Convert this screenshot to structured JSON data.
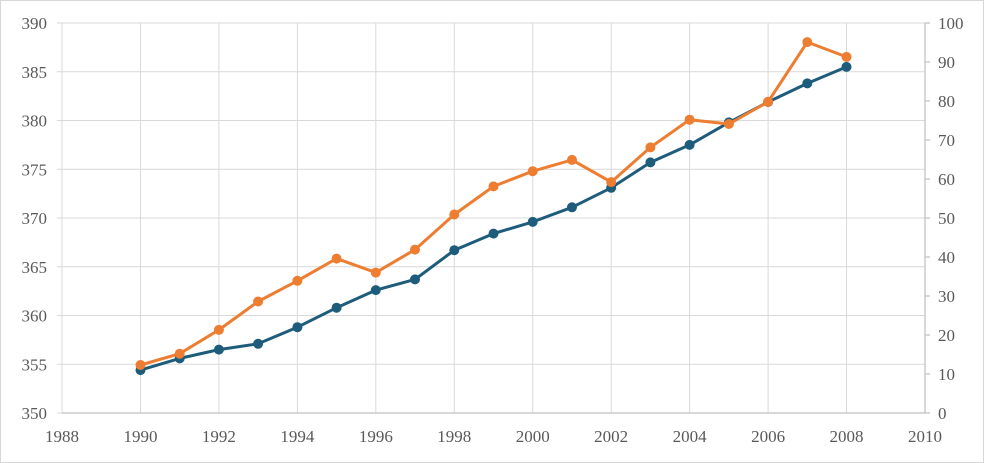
{
  "chart_data": {
    "type": "line",
    "title": "",
    "xlabel": "",
    "ylabel": "",
    "legend": false,
    "grid": true,
    "x": [
      1990,
      1991,
      1992,
      1993,
      1994,
      1995,
      1996,
      1997,
      1998,
      1999,
      2000,
      2001,
      2002,
      2003,
      2004,
      2005,
      2006,
      2007,
      2008
    ],
    "series": [
      {
        "name": "blue-series",
        "axis": "left",
        "color": "#1e5c7c",
        "marker": "circle",
        "values": [
          354.4,
          355.6,
          356.5,
          357.1,
          358.8,
          360.8,
          362.6,
          363.7,
          366.7,
          368.4,
          369.6,
          371.1,
          373.1,
          375.7,
          377.5,
          379.8,
          381.9,
          383.8,
          385.5
        ]
      },
      {
        "name": "orange-series",
        "axis": "right",
        "color": "#ed7d31",
        "marker": "circle",
        "values": [
          12.3,
          15.2,
          21.3,
          28.6,
          33.9,
          39.6,
          36.0,
          41.9,
          50.9,
          58.1,
          62.0,
          64.9,
          59.2,
          68.1,
          75.2,
          74.1,
          79.8,
          95.1,
          91.3
        ]
      }
    ],
    "xlim": [
      1988,
      2010
    ],
    "left_ylim": [
      350,
      390
    ],
    "right_ylim": [
      0,
      100
    ],
    "x_tick_labels": [
      "1988",
      "1990",
      "1992",
      "1994",
      "1996",
      "1998",
      "2000",
      "2002",
      "2004",
      "2006",
      "2008",
      "2010"
    ],
    "x_tick_values": [
      1988,
      1990,
      1992,
      1994,
      1996,
      1998,
      2000,
      2002,
      2004,
      2006,
      2008,
      2010
    ],
    "left_tick_labels": [
      "350",
      "355",
      "360",
      "365",
      "370",
      "375",
      "380",
      "385",
      "390"
    ],
    "left_tick_values": [
      350,
      355,
      360,
      365,
      370,
      375,
      380,
      385,
      390
    ],
    "right_tick_labels": [
      "0",
      "10",
      "20",
      "30",
      "40",
      "50",
      "60",
      "70",
      "80",
      "90",
      "100"
    ],
    "right_tick_values": [
      0,
      10,
      20,
      30,
      40,
      50,
      60,
      70,
      80,
      90,
      100
    ],
    "colors": {
      "gridline": "#d9d9d9",
      "axis_line": "#bfbfbf",
      "tick_label": "#595959",
      "plot_background": "#ffffff"
    }
  }
}
